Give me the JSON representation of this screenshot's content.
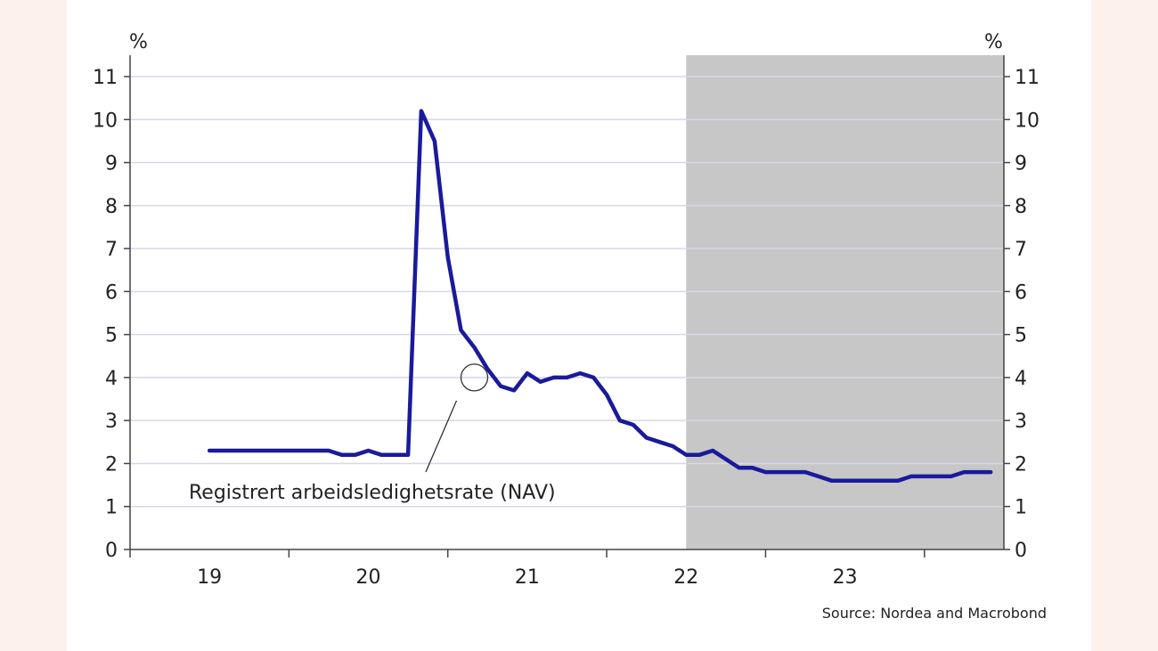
{
  "chart_data": {
    "type": "line",
    "left_unit": "%",
    "right_unit": "%",
    "ylim": [
      0,
      11
    ],
    "yticks": [
      0,
      1,
      2,
      3,
      4,
      5,
      6,
      7,
      8,
      9,
      10,
      11
    ],
    "xlim": [
      2018.5,
      2024.0
    ],
    "xtick_labels": [
      {
        "label": "19",
        "year": 2019
      },
      {
        "label": "20",
        "year": 2020
      },
      {
        "label": "21",
        "year": 2021
      },
      {
        "label": "22",
        "year": 2022
      },
      {
        "label": "23",
        "year": 2023
      }
    ],
    "grid": true,
    "forecast_shading": {
      "from": 2022.0,
      "to": 2024.0,
      "color": "#c8c7c7"
    },
    "series": [
      {
        "name": "Registrert arbeidsledighetsrate (NAV)",
        "color": "#1a1a9c",
        "x": [
          2019.0,
          2019.083,
          2019.167,
          2019.25,
          2019.333,
          2019.417,
          2019.5,
          2019.583,
          2019.667,
          2019.75,
          2019.833,
          2019.917,
          2020.0,
          2020.083,
          2020.167,
          2020.25,
          2020.333,
          2020.417,
          2020.5,
          2020.583,
          2020.667,
          2020.75,
          2020.833,
          2020.917,
          2021.0,
          2021.083,
          2021.167,
          2021.25,
          2021.333,
          2021.417,
          2021.5,
          2021.583,
          2021.667,
          2021.75,
          2021.833,
          2021.917,
          2022.0,
          2022.083,
          2022.167,
          2022.25,
          2022.333,
          2022.417,
          2022.5,
          2022.583,
          2022.667,
          2022.75,
          2022.833,
          2022.917,
          2023.0,
          2023.083,
          2023.167,
          2023.25,
          2023.333,
          2023.417,
          2023.5,
          2023.583,
          2023.667,
          2023.75,
          2023.833,
          2023.917
        ],
        "y": [
          2.3,
          2.3,
          2.3,
          2.3,
          2.3,
          2.3,
          2.3,
          2.3,
          2.3,
          2.3,
          2.2,
          2.2,
          2.3,
          2.2,
          2.2,
          2.2,
          10.2,
          9.5,
          6.8,
          5.1,
          4.7,
          4.2,
          3.8,
          3.7,
          4.1,
          3.9,
          4.0,
          4.0,
          4.1,
          4.0,
          3.6,
          3.0,
          2.9,
          2.6,
          2.5,
          2.4,
          2.2,
          2.2,
          2.3,
          2.1,
          1.9,
          1.9,
          1.8,
          1.8,
          1.8,
          1.8,
          1.7,
          1.6,
          1.6,
          1.6,
          1.6,
          1.6,
          1.6,
          1.7,
          1.7,
          1.7,
          1.7,
          1.8,
          1.8,
          1.8
        ]
      }
    ],
    "annotation": {
      "text": "Registrert arbeidsledighetsrate (NAV)",
      "target_x": 2020.667,
      "target_y": 4.0
    },
    "source": "Source: Nordea and Macrobond"
  }
}
